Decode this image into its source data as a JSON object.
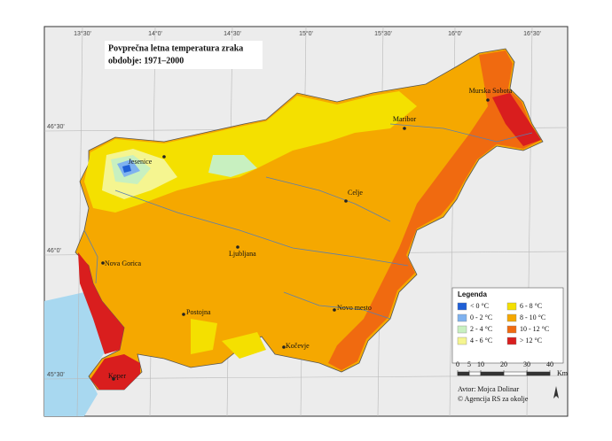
{
  "title": [
    "Povprečna letna temperatura zraka",
    "obdobje: 1971–2000"
  ],
  "graticule": {
    "top": [
      "13°30'",
      "14°0'",
      "14°30'",
      "15°0'",
      "15°30'",
      "16°0'",
      "16°30'"
    ],
    "left": [
      "46°30'",
      "46°0'",
      "45°30'"
    ]
  },
  "cities": [
    "Murska Sobota",
    "Maribor",
    "Jesenice",
    "Celje",
    "Ljubljana",
    "Nova Gorica",
    "Postojna",
    "Novo mesto",
    "Kočevje",
    "Koper"
  ],
  "legend": {
    "title": "Legenda",
    "items": [
      {
        "label": "< 0 °C",
        "color": "#1f5fd6"
      },
      {
        "label": "0 - 2 °C",
        "color": "#7fb2ef"
      },
      {
        "label": "2 - 4 °C",
        "color": "#c8f0c0"
      },
      {
        "label": "4 - 6 °C",
        "color": "#f5f590"
      },
      {
        "label": "6 - 8 °C",
        "color": "#f4e000"
      },
      {
        "label": "8 - 10 °C",
        "color": "#f5a800"
      },
      {
        "label": "10 - 12 °C",
        "color": "#f06a10"
      },
      {
        "label": "> 12 °C",
        "color": "#d91e1e"
      }
    ]
  },
  "scale": {
    "ticks": [
      0,
      5,
      10,
      20,
      30,
      40
    ],
    "unit": "Km"
  },
  "credits": [
    "Avtor: Mojca Dolinar",
    "© Agencija RS za okolje"
  ]
}
